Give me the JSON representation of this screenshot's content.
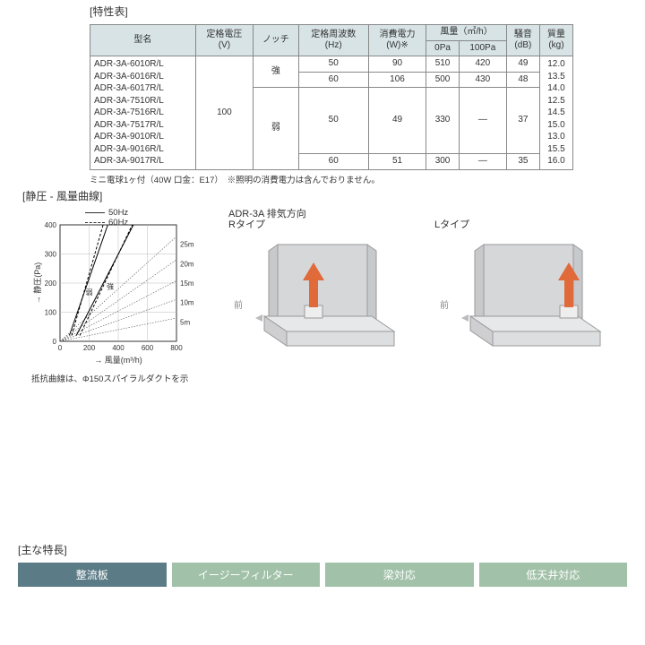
{
  "titles": {
    "spec": "[特性表]",
    "curve": "[静圧 - 風量曲線]",
    "features": "[主な特長]"
  },
  "table": {
    "headers": {
      "model": "型名",
      "voltage": "定格電圧\n(V)",
      "notch": "ノッチ",
      "freq": "定格周波数\n(Hz)",
      "power": "消費電力\n(W)※",
      "airflow": "風量（㎥/h）",
      "air0": "0Pa",
      "air100": "100Pa",
      "noise": "騒音\n(dB)",
      "mass": "質量\n(kg)"
    },
    "voltage": "100",
    "notch_strong": "強",
    "notch_weak": "弱",
    "models": [
      "ADR-3A-6010R/L",
      "ADR-3A-6016R/L",
      "ADR-3A-6017R/L",
      "ADR-3A-7510R/L",
      "ADR-3A-7516R/L",
      "ADR-3A-7517R/L",
      "ADR-3A-9010R/L",
      "ADR-3A-9016R/L",
      "ADR-3A-9017R/L"
    ],
    "rows": [
      {
        "freq": "50",
        "power": "90",
        "a0": "510",
        "a100": "420",
        "noise": "49"
      },
      {
        "freq": "60",
        "power": "106",
        "a0": "500",
        "a100": "430",
        "noise": "48"
      },
      {
        "freq": "50",
        "power": "49",
        "a0": "330",
        "a100": "—",
        "noise": "37"
      },
      {
        "freq": "60",
        "power": "51",
        "a0": "300",
        "a100": "—",
        "noise": "35"
      }
    ],
    "mass": [
      "12.0",
      "13.5",
      "14.0",
      "12.5",
      "14.5",
      "15.0",
      "13.0",
      "15.5",
      "16.0"
    ],
    "note": "ミニ電球1ヶ付（40W 口金：E17）　※照明の消費電力は含んでおりません。"
  },
  "chart": {
    "legend50": "50Hz",
    "legend60": "60Hz",
    "yAxisLabel": "静圧(Pa)",
    "xAxisLabel": "風量(m³/h)",
    "yTicks": [
      "0",
      "100",
      "200",
      "300",
      "400"
    ],
    "xTicks": [
      "0",
      "200",
      "400",
      "600",
      "800"
    ],
    "rightTicks": [
      "5m",
      "10m",
      "15m",
      "20m",
      "25m"
    ],
    "innerLabels": {
      "strong": "強",
      "weak": "弱"
    },
    "strong50": [
      [
        0.14,
        0.05
      ],
      [
        0.63,
        1.0
      ]
    ],
    "strong60": [
      [
        0.17,
        0.05
      ],
      [
        0.62,
        1.0
      ]
    ],
    "weak50": [
      [
        0.08,
        0.05
      ],
      [
        0.41,
        1.0
      ]
    ],
    "weak60": [
      [
        0.1,
        0.05
      ],
      [
        0.37,
        1.0
      ]
    ],
    "resistances": [
      [
        [
          0.0,
          0.0
        ],
        [
          1.0,
          0.9
        ]
      ],
      [
        [
          0.0,
          0.0
        ],
        [
          1.0,
          0.7
        ]
      ],
      [
        [
          0.0,
          0.0
        ],
        [
          1.0,
          0.52
        ]
      ],
      [
        [
          0.0,
          0.0
        ],
        [
          1.0,
          0.36
        ]
      ],
      [
        [
          0.0,
          0.0
        ],
        [
          1.0,
          0.2
        ]
      ]
    ],
    "caption": "抵抗曲線は、Φ150スパイラルダクトを示"
  },
  "diagrams": {
    "main": "ADR-3A 排気方向",
    "r": "Rタイプ",
    "l": "Lタイプ",
    "front": "前",
    "colors": {
      "wall": "#d6d7d9",
      "wallEdge": "#9a9a9a",
      "body": "#e7e8ea",
      "bodyEdge": "#9a9a9a",
      "arrow": "#e06a3a"
    }
  },
  "features": {
    "items": [
      "整流板",
      "イージーフィルター",
      "梁対応",
      "低天井対応"
    ]
  }
}
